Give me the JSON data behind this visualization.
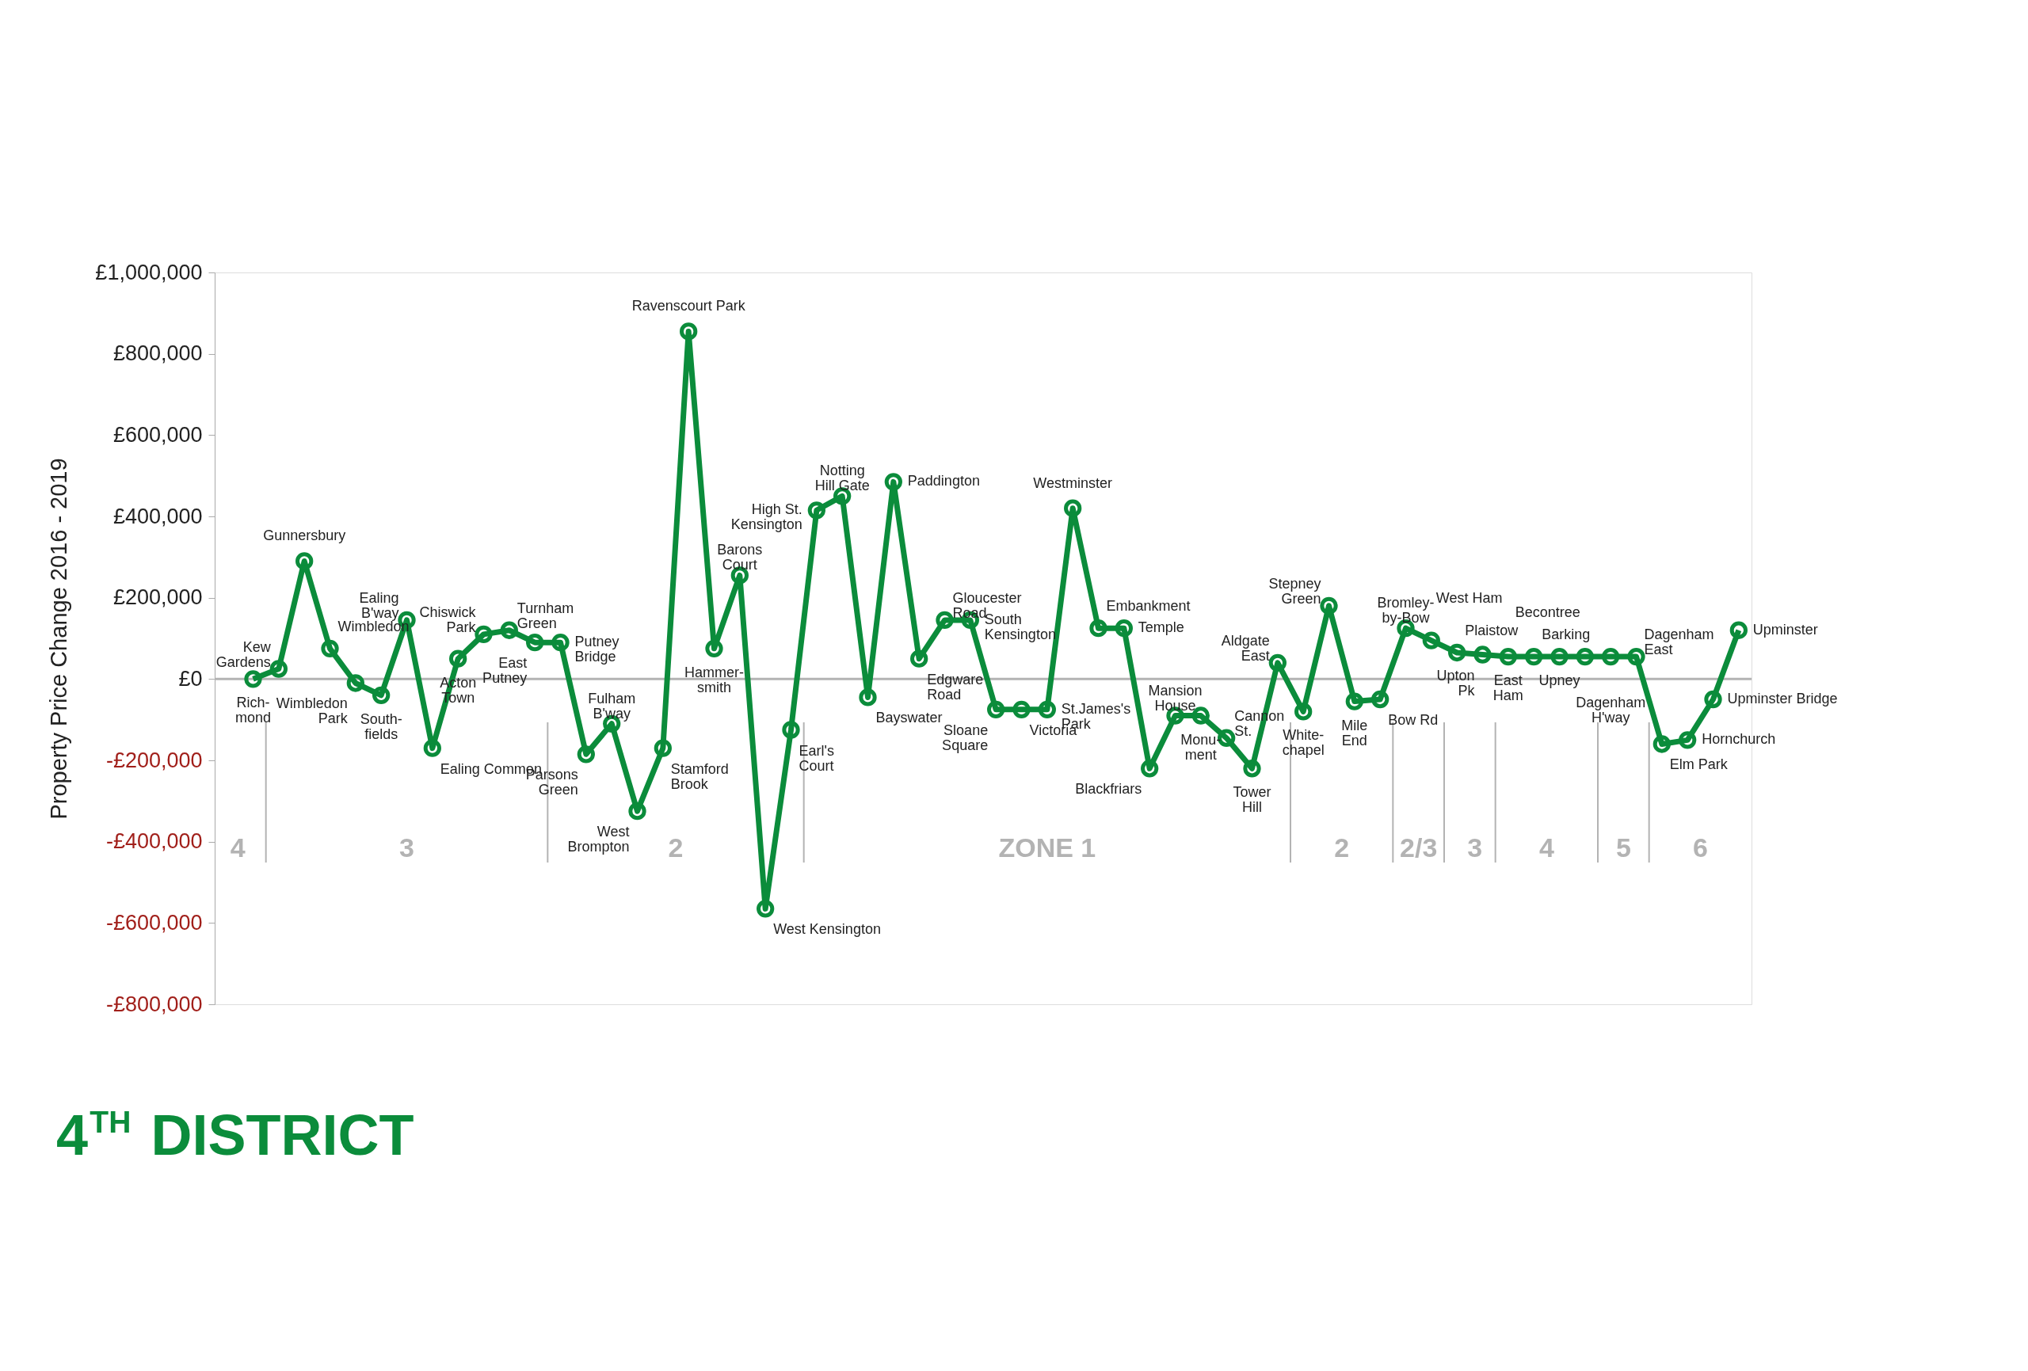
{
  "chart_data": {
    "type": "line",
    "title": "4$^{TH}$ DISTRICT",
    "ylabel": "Property Price Change 2016 - 2019",
    "categories": [
      null,
      null,
      null,
      null,
      null,
      null,
      null,
      null,
      null,
      null,
      null,
      null,
      null,
      null,
      null,
      null,
      null,
      null,
      null,
      null,
      null,
      null,
      null,
      null,
      null,
      null,
      null,
      null,
      null,
      null,
      null,
      null,
      null,
      null,
      null,
      null,
      null,
      null,
      null,
      null,
      null,
      null,
      null,
      null,
      null,
      null,
      null,
      null,
      null,
      null,
      null,
      null,
      null,
      null,
      null,
      null,
      null,
      null,
      null
    ],
    "series": [
      {
        "color": "#0b8c3b",
        "values": [
          0,
          25000,
          290000,
          75000,
          -10000,
          -40000,
          145000,
          -170000,
          50000,
          110000,
          120000,
          90000,
          90000,
          -185000,
          -110000,
          -325000,
          -170000,
          855000,
          75000,
          255000,
          -565000,
          -125000,
          415000,
          450000,
          -45000,
          485000,
          50000,
          145000,
          145000,
          -75000,
          -75000,
          -75000,
          420000,
          125000,
          125000,
          -220000,
          -90000,
          -90000,
          -145000,
          -220000,
          40000,
          -80000,
          180000,
          -55000,
          -50000,
          125000,
          95000,
          65000,
          60000,
          55000,
          55000,
          55000,
          55000,
          55000,
          55000,
          -160000,
          -150000,
          -50000,
          120000
        ]
      }
    ],
    "ylim": [
      -800000,
      1000000
    ],
    "yticks": [
      {
        "value": -800000,
        "label": "-£800,000"
      },
      {
        "value": -600000,
        "label": "-£600,000"
      },
      {
        "value": -400000,
        "label": "-£400,000"
      },
      {
        "value": -200000,
        "label": "-£200,000"
      },
      {
        "value": 0,
        "label": "£0"
      },
      {
        "value": 200000,
        "label": "£200,000"
      },
      {
        "value": 400000,
        "label": "£400,000"
      },
      {
        "value": 600000,
        "label": "£600,000"
      },
      {
        "value": 800000,
        "label": "£800,000"
      },
      {
        "value": 1000000,
        "label": "£1,000,000"
      }
    ],
    "marker": "circle",
    "line_style": "solid",
    "grid": false,
    "tick_labels": "y",
    "ref_lines": [
      {
        "axis": "y",
        "value": 0,
        "color": "#b3b3b3"
      }
    ],
    "annotations": [
      "Rich-\nmond",
      "Kew\nGardens",
      "Gunnersbury",
      "Wimbledon",
      "Wimbledon\nPark",
      "South-\nfields",
      "Ealing\nB'way",
      "Ealing Common",
      "Acton\nTown",
      "Chiswick\nPark",
      "Turnham\nGreen",
      "East\nPutney",
      "Putney\nBridge",
      "Parsons\nGreen",
      "Fulham\nB'way",
      "West\nBrompton",
      "Stamford\nBrook",
      "Ravenscourt Park",
      "Hammer-\nsmith",
      "Barons\nCourt",
      "West Kensington",
      "Earl's\nCourt",
      "High St.\nKensington",
      "Notting\nHill Gate",
      "Bayswater",
      "Paddington",
      "Edgware\nRoad",
      "Gloucester\nRoad",
      "South\nKensington",
      "Sloane\nSquare",
      "Victoria",
      "St.James's\nPark",
      "Westminster",
      "Embankment",
      "Temple",
      "Blackfriars",
      "Mansion\nHouse",
      "Monu-\nment",
      "Cannon\nSt.",
      "Tower\nHill",
      "Aldgate\nEast",
      "White-\nchapel",
      "Stepney\nGreen",
      "Mile\nEnd",
      "Bow Rd",
      "Bromley-\nby-Bow",
      "West Ham",
      "Plaistow",
      "Upton\nPk",
      "East\nHam",
      "Barking",
      "Upney",
      "Becontree",
      "Dagenham\nH'way",
      "Dagenham\nEast",
      "Elm Park",
      "Hornchurch",
      "Upminster Bridge",
      "Upminster",
      "4",
      "3",
      "2",
      "ZONE 1",
      "2",
      "2/3",
      "3",
      "4",
      "5",
      "6"
    ]
  }
}
